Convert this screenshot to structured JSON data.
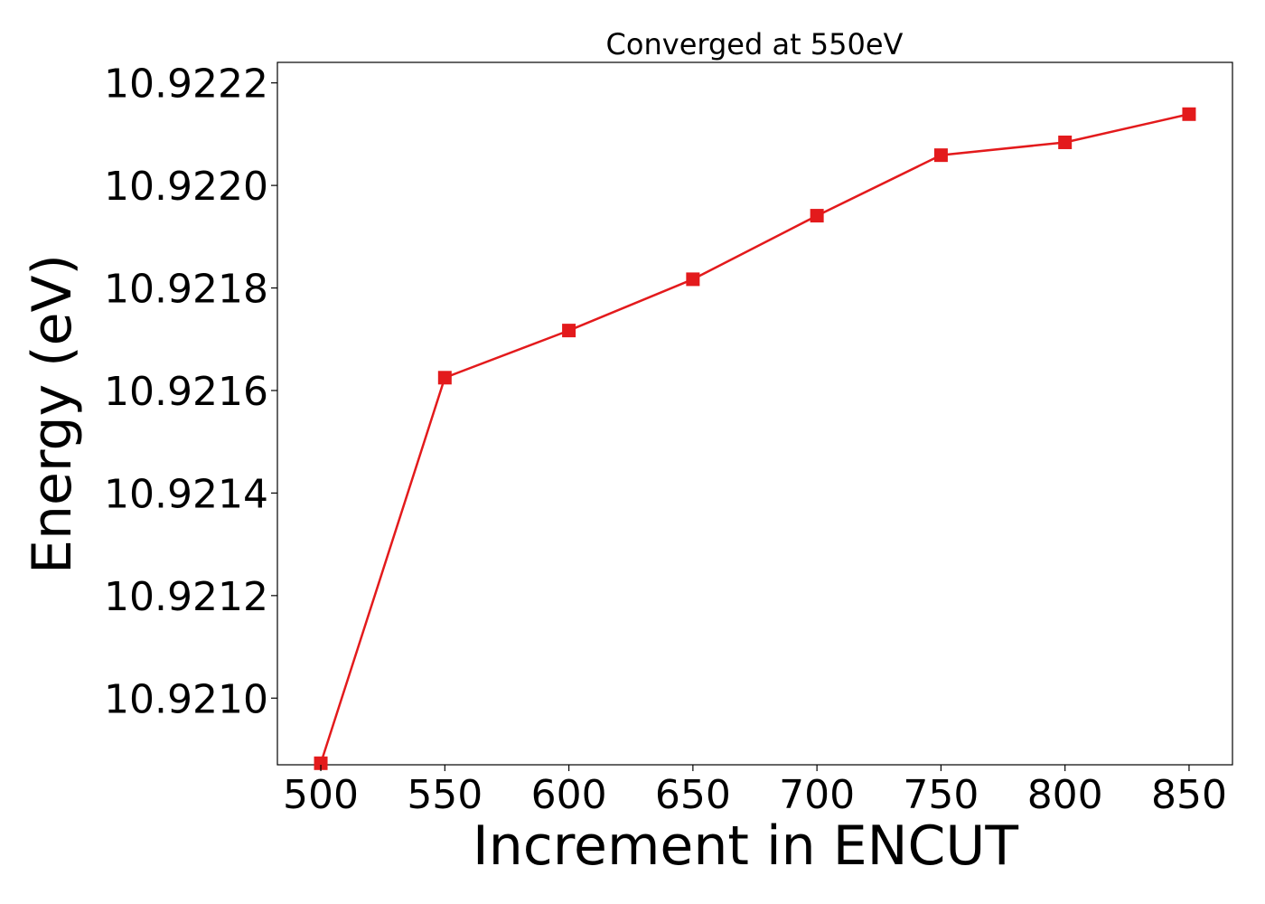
{
  "chart_data": {
    "type": "line",
    "title": "Converged at 550eV",
    "xlabel": "Increment in ENCUT",
    "ylabel": "Energy (eV)",
    "x": [
      500,
      550,
      600,
      650,
      700,
      750,
      800,
      850
    ],
    "x_ticks": [
      "500",
      "550",
      "600",
      "650",
      "700",
      "750",
      "800",
      "850"
    ],
    "y_ticks": [
      "10.9210",
      "10.9212",
      "10.9214",
      "10.9216",
      "10.9218",
      "10.9220",
      "10.9222"
    ],
    "y_tick_values": [
      10.921,
      10.9212,
      10.9214,
      10.9216,
      10.9218,
      10.922,
      10.9222
    ],
    "xlim": [
      482.5,
      867.5
    ],
    "ylim": [
      10.92087,
      10.92224
    ],
    "series": [
      {
        "values": [
          10.920873,
          10.921625,
          10.921717,
          10.921817,
          10.921941,
          10.922059,
          10.922084,
          10.922139
        ],
        "color": "#e31a1c",
        "marker": "square"
      }
    ],
    "grid": false,
    "legend": "none"
  }
}
